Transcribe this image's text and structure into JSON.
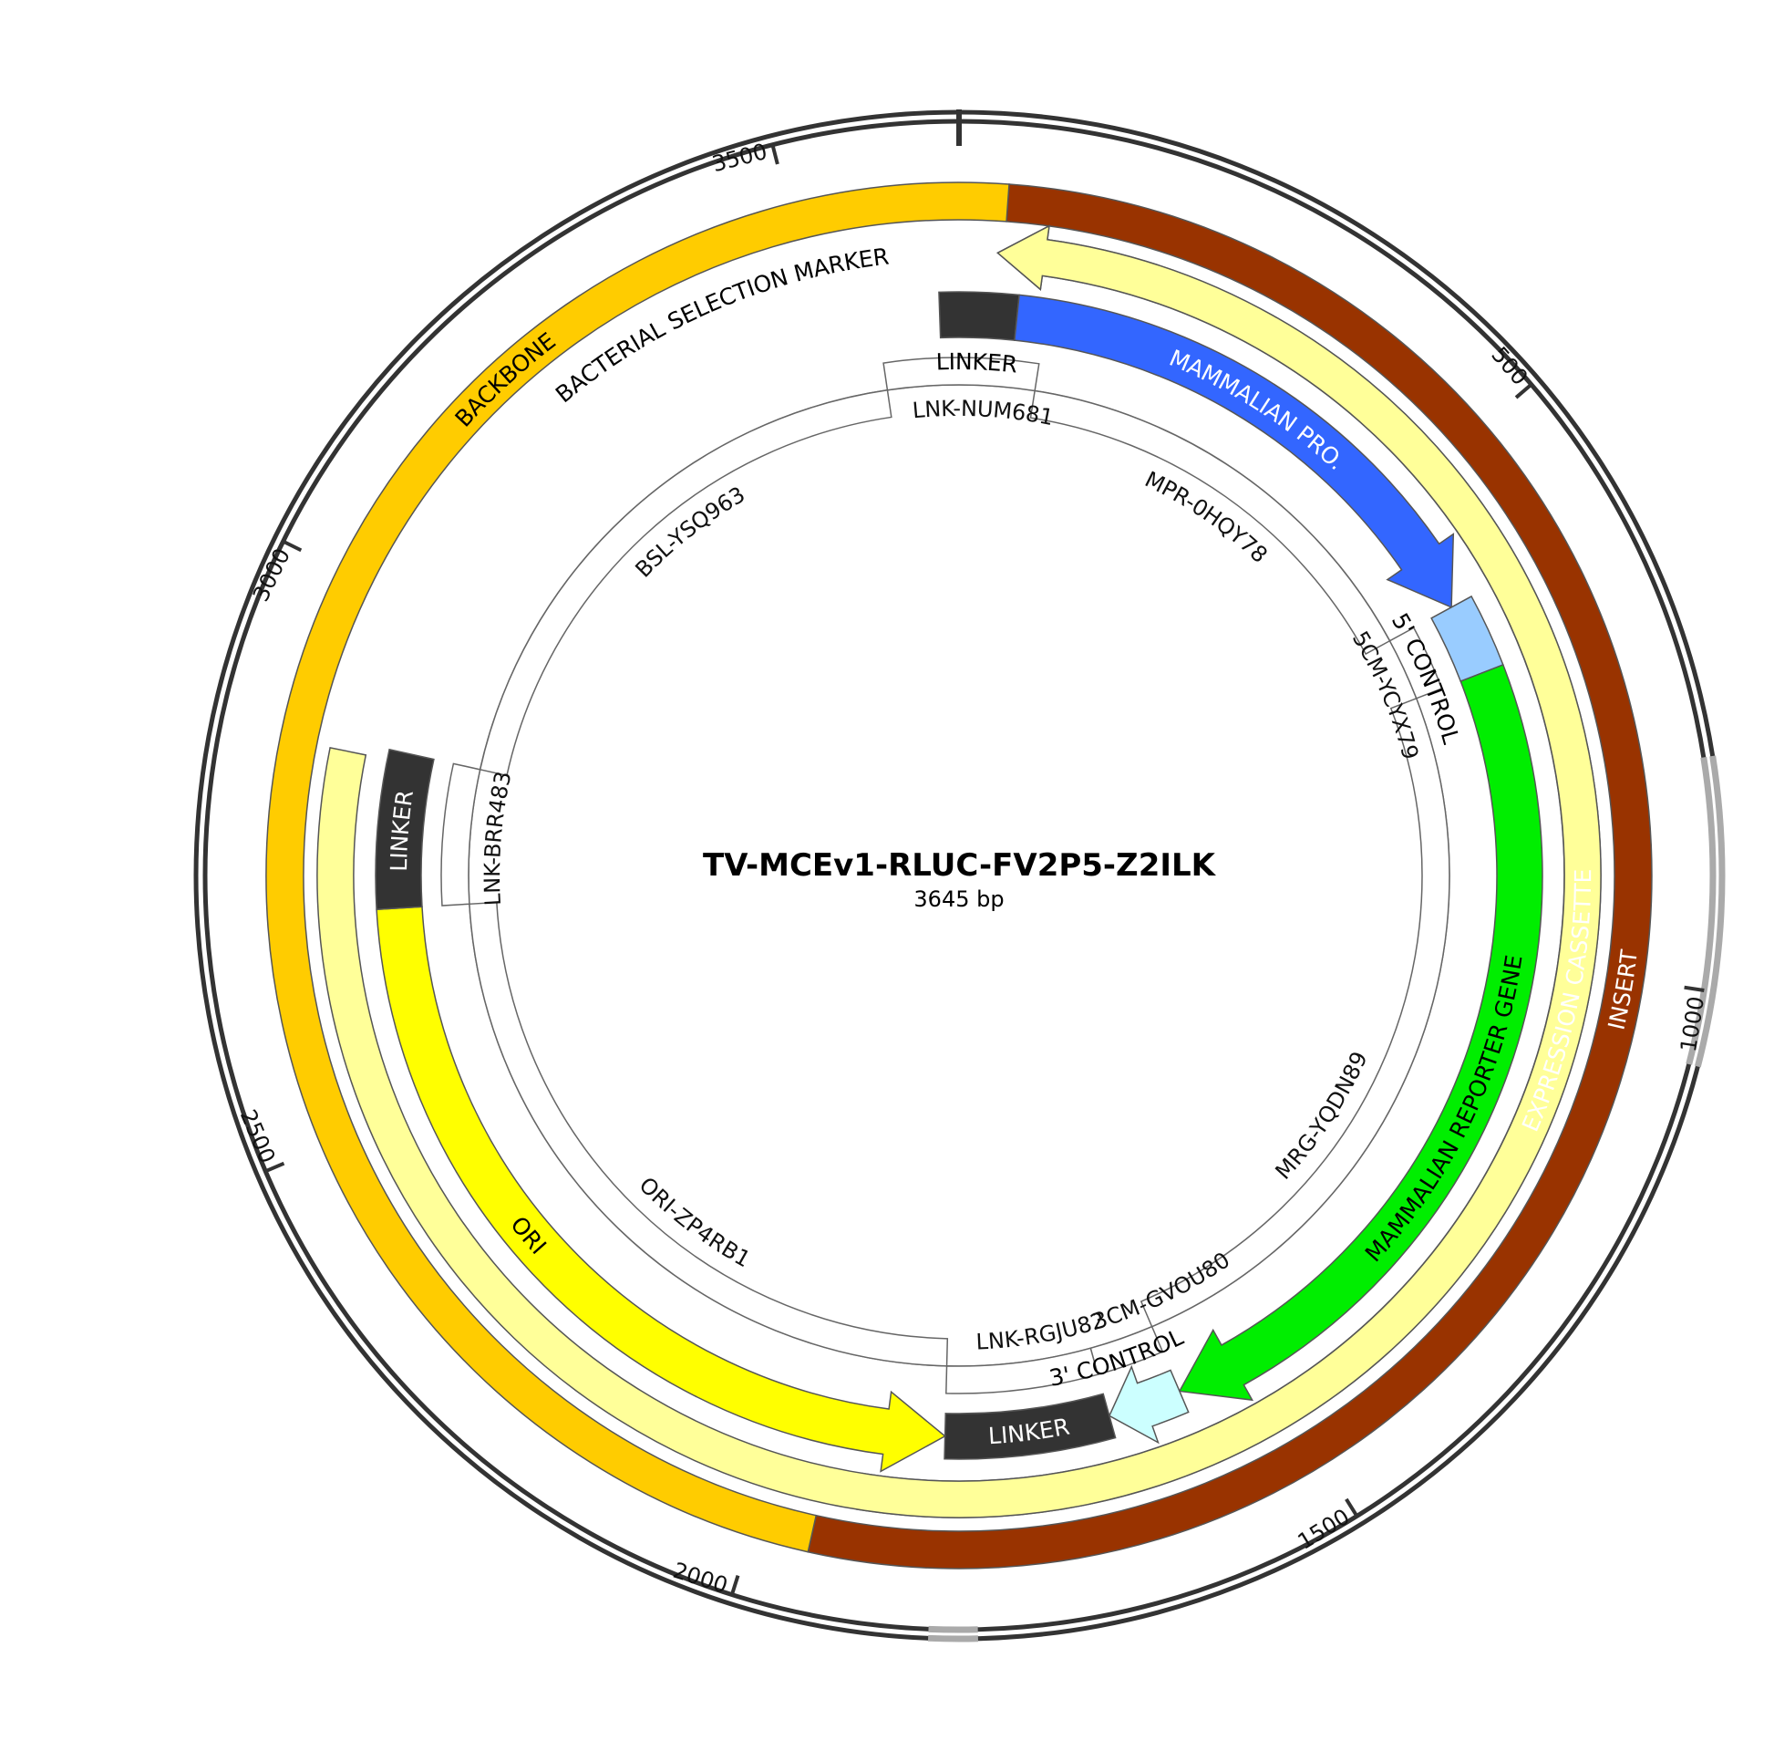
{
  "plasmid": {
    "name": "TV-MCEv1-RLUC-FV2P5-Z2ILK",
    "length_label": "3645 bp",
    "length": 3645
  },
  "ticks": [
    {
      "pos": 500,
      "label": "500"
    },
    {
      "pos": 1000,
      "label": "1000"
    },
    {
      "pos": 1500,
      "label": "1500"
    },
    {
      "pos": 2000,
      "label": "2000"
    },
    {
      "pos": 2500,
      "label": "2500"
    },
    {
      "pos": 3000,
      "label": "3000"
    },
    {
      "pos": 3500,
      "label": "3500"
    }
  ],
  "backbone_highlights": [
    {
      "start": 820,
      "end": 1058
    },
    {
      "start": 1808,
      "end": 1846
    }
  ],
  "features": [
    {
      "id": "insert",
      "label": "INSERT",
      "start": 42,
      "end": 1950,
      "ring": 1,
      "color": "#993300",
      "text_color": "#ffffff",
      "arrow": "none",
      "label_pos": 1010
    },
    {
      "id": "backbone",
      "label": "BACKBONE",
      "start": 1950,
      "end": 42,
      "ring": 1,
      "color": "#ffcc00",
      "text_color": "#000000",
      "arrow": "none",
      "label_pos": 3215
    },
    {
      "id": "expression-cassette",
      "label": "EXPRESSION CASSETTE",
      "start": 36,
      "end": 1915,
      "ring": 2,
      "color": "#ff6600",
      "text_color": "#ffffff",
      "arrow": "rev",
      "label_pos": 1030
    },
    {
      "id": "bacterial-selection-marker",
      "label": "BACTERIAL SELECTION MARKER",
      "start": 36,
      "end": 2850,
      "ring": 2,
      "color": "#ffff99",
      "text_color": "#000000",
      "arrow": "rev",
      "label_pos": 3410
    },
    {
      "id": "linker-top",
      "label": "LINKER",
      "start": 3625,
      "end": 60,
      "ring": 3,
      "color": "#333333",
      "text_color": "#ffffff",
      "arrow": "none",
      "label_pos": 20,
      "label_outside": true,
      "label_color": "#000000"
    },
    {
      "id": "mammalian-pro",
      "label": "MAMMALIAN PRO.",
      "start": 60,
      "end": 622,
      "ring": 3,
      "color": "#3366ff",
      "text_color": "#ffffff",
      "arrow": "fwd",
      "label_pos": 330
    },
    {
      "id": "five-control",
      "label": "5' CONTROL",
      "start": 622,
      "end": 697,
      "ring": 3,
      "color": "#99ccff",
      "text_color": "#000000",
      "arrow": "none",
      "label_pos": 680,
      "label_inside": true
    },
    {
      "id": "mammalian-reporter-gene",
      "label": "MAMMALIAN REPORTER GENE",
      "start": 697,
      "end": 1588,
      "ring": 3,
      "color": "#00ee00",
      "text_color": "#000000",
      "arrow": "fwd",
      "label_pos": 1170
    },
    {
      "id": "three-control",
      "label": "3' CONTROL",
      "start": 1588,
      "end": 1665,
      "ring": 3,
      "color": "#ccffff",
      "text_color": "#000000",
      "arrow": "fwd",
      "label_pos": 1640,
      "label_inside": true
    },
    {
      "id": "linker-bottom",
      "label": "LINKER",
      "start": 1665,
      "end": 1837,
      "ring": 3,
      "color": "#333333",
      "text_color": "#ffffff",
      "arrow": "none",
      "label_pos": 1750
    },
    {
      "id": "ori",
      "label": "ORI",
      "start": 1837,
      "end": 2700,
      "ring": 3,
      "color": "#ffff00",
      "text_color": "#000000",
      "arrow": "rev",
      "label_pos": 2330
    },
    {
      "id": "linker-left",
      "label": "LINKER",
      "start": 2700,
      "end": 2860,
      "ring": 3,
      "color": "#333333",
      "text_color": "#ffffff",
      "arrow": "none",
      "label_pos": 2780
    }
  ],
  "sub_features": [
    {
      "label": "LNK-NUM681",
      "start": 3560,
      "end": 90,
      "ring": "outer",
      "label_pos": 30
    },
    {
      "label": "MPR-0HQY78",
      "start": 90,
      "end": 622,
      "ring": "inner",
      "label_pos": 350
    },
    {
      "label": "5CM-YCYX79",
      "start": 622,
      "end": 697,
      "ring": "outer",
      "label_pos": 680
    },
    {
      "label": "MRG-YQDN89",
      "start": 697,
      "end": 1588,
      "ring": "inner",
      "label_pos": 1250
    },
    {
      "label": "3CM-GVOU80",
      "start": 1588,
      "end": 1665,
      "ring": "outer",
      "label_pos": 1560
    },
    {
      "label": "LNK-RGJU82",
      "start": 1665,
      "end": 1837,
      "ring": "outer",
      "label_pos": 1720
    },
    {
      "label": "ORI-ZP4RB1",
      "start": 1837,
      "end": 2700,
      "ring": "inner",
      "label_pos": 2200
    },
    {
      "label": "LNK-BRR483",
      "start": 2700,
      "end": 2860,
      "ring": "outer",
      "label_pos": 2780
    },
    {
      "label": "BSL-YSQ963",
      "start": 2860,
      "end": 3560,
      "ring": "inner",
      "label_pos": 3260
    }
  ]
}
